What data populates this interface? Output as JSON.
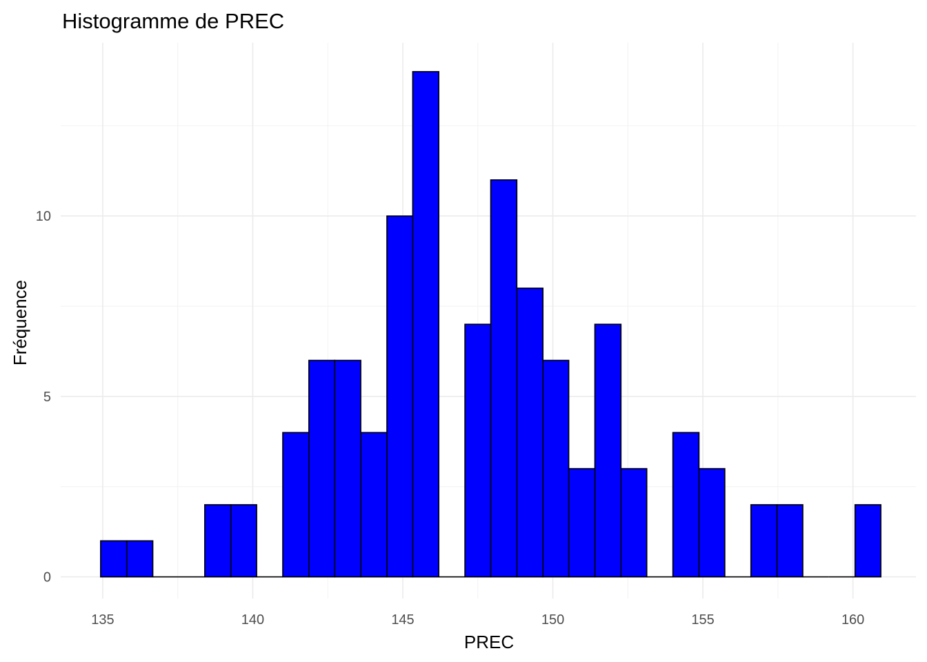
{
  "chart_data": {
    "type": "bar",
    "title": "Histogramme de PREC",
    "xlabel": "PREC",
    "ylabel": "Fréquence",
    "xlim": [
      133.6,
      162.1
    ],
    "ylim": [
      -0.6,
      14.8
    ],
    "x_ticks": [
      135,
      140,
      145,
      150,
      155,
      160
    ],
    "y_ticks": [
      0,
      5,
      10
    ],
    "bin_width": 0.8667,
    "bins": [
      {
        "x0": 134.93,
        "x1": 135.8,
        "count": 1
      },
      {
        "x0": 135.8,
        "x1": 136.67,
        "count": 1
      },
      {
        "x0": 136.67,
        "x1": 137.53,
        "count": 0
      },
      {
        "x0": 137.53,
        "x1": 138.4,
        "count": 0
      },
      {
        "x0": 138.4,
        "x1": 139.27,
        "count": 2
      },
      {
        "x0": 139.27,
        "x1": 140.13,
        "count": 2
      },
      {
        "x0": 140.13,
        "x1": 141.0,
        "count": 0
      },
      {
        "x0": 141.0,
        "x1": 141.87,
        "count": 4
      },
      {
        "x0": 141.87,
        "x1": 142.73,
        "count": 6
      },
      {
        "x0": 142.73,
        "x1": 143.6,
        "count": 6
      },
      {
        "x0": 143.6,
        "x1": 144.47,
        "count": 4
      },
      {
        "x0": 144.47,
        "x1": 145.33,
        "count": 10
      },
      {
        "x0": 145.33,
        "x1": 146.2,
        "count": 14
      },
      {
        "x0": 146.2,
        "x1": 147.07,
        "count": 0
      },
      {
        "x0": 147.07,
        "x1": 147.93,
        "count": 7
      },
      {
        "x0": 147.93,
        "x1": 148.8,
        "count": 11
      },
      {
        "x0": 148.8,
        "x1": 149.67,
        "count": 8
      },
      {
        "x0": 149.67,
        "x1": 150.53,
        "count": 6
      },
      {
        "x0": 150.53,
        "x1": 151.4,
        "count": 3
      },
      {
        "x0": 151.4,
        "x1": 152.27,
        "count": 7
      },
      {
        "x0": 152.27,
        "x1": 153.13,
        "count": 3
      },
      {
        "x0": 153.13,
        "x1": 154.0,
        "count": 0
      },
      {
        "x0": 154.0,
        "x1": 154.87,
        "count": 4
      },
      {
        "x0": 154.87,
        "x1": 155.73,
        "count": 3
      },
      {
        "x0": 155.73,
        "x1": 156.6,
        "count": 0
      },
      {
        "x0": 156.6,
        "x1": 157.47,
        "count": 2
      },
      {
        "x0": 157.47,
        "x1": 158.33,
        "count": 2
      },
      {
        "x0": 158.33,
        "x1": 159.2,
        "count": 0
      },
      {
        "x0": 159.2,
        "x1": 160.07,
        "count": 0
      },
      {
        "x0": 160.07,
        "x1": 160.93,
        "count": 2
      }
    ],
    "bar_fill": "#0000ff",
    "bar_outline": "#000000",
    "grid": true,
    "theme": "minimal"
  }
}
